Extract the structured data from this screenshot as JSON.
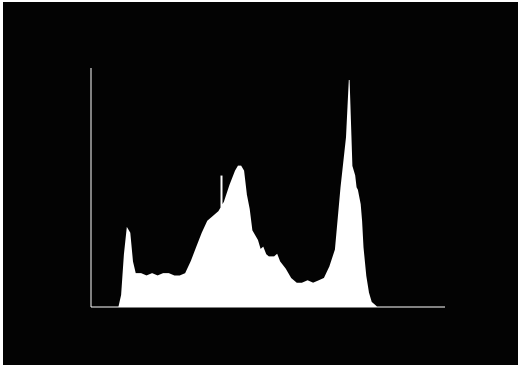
{
  "background_color": "#030303",
  "foreground_color": "#ffffff",
  "chart_data": {
    "type": "area",
    "title": "",
    "xlabel": "",
    "ylabel": "",
    "xlim": [
      0,
      255
    ],
    "ylim": [
      0,
      100
    ],
    "grid": false,
    "legend": "none",
    "x": [
      0,
      10,
      20,
      22,
      24,
      26,
      28,
      30,
      32,
      34,
      36,
      40,
      44,
      48,
      52,
      56,
      60,
      64,
      68,
      72,
      76,
      80,
      84,
      88,
      92,
      96,
      100,
      104,
      106,
      108,
      110,
      112,
      114,
      116,
      118,
      120,
      122,
      124,
      126,
      128,
      130,
      132,
      134,
      136,
      140,
      144,
      148,
      152,
      156,
      160,
      164,
      168,
      172,
      176,
      180,
      184,
      186,
      188,
      190,
      191,
      192,
      193,
      194,
      195,
      196,
      198,
      200,
      202,
      204,
      206,
      208,
      210,
      220,
      230,
      240,
      255
    ],
    "values": [
      0,
      0,
      0,
      5,
      22,
      33,
      31,
      19,
      14,
      14,
      14,
      13,
      14,
      13,
      14,
      14,
      13,
      13,
      14,
      19,
      25,
      31,
      36,
      38,
      40,
      44,
      51,
      57,
      59,
      59,
      57,
      47,
      41,
      32,
      30,
      28,
      24,
      25,
      22,
      21,
      21,
      21,
      22,
      19,
      16,
      12,
      10,
      10,
      11,
      10,
      11,
      12,
      17,
      24,
      50,
      71,
      95,
      59,
      55,
      50,
      49,
      46,
      43,
      36,
      25,
      13,
      6,
      2,
      1,
      0,
      0,
      0,
      0,
      0,
      0,
      0
    ],
    "annotations": [
      {
        "type": "arrow",
        "x": 94,
        "y_from": 55,
        "y_to": 26
      }
    ]
  }
}
